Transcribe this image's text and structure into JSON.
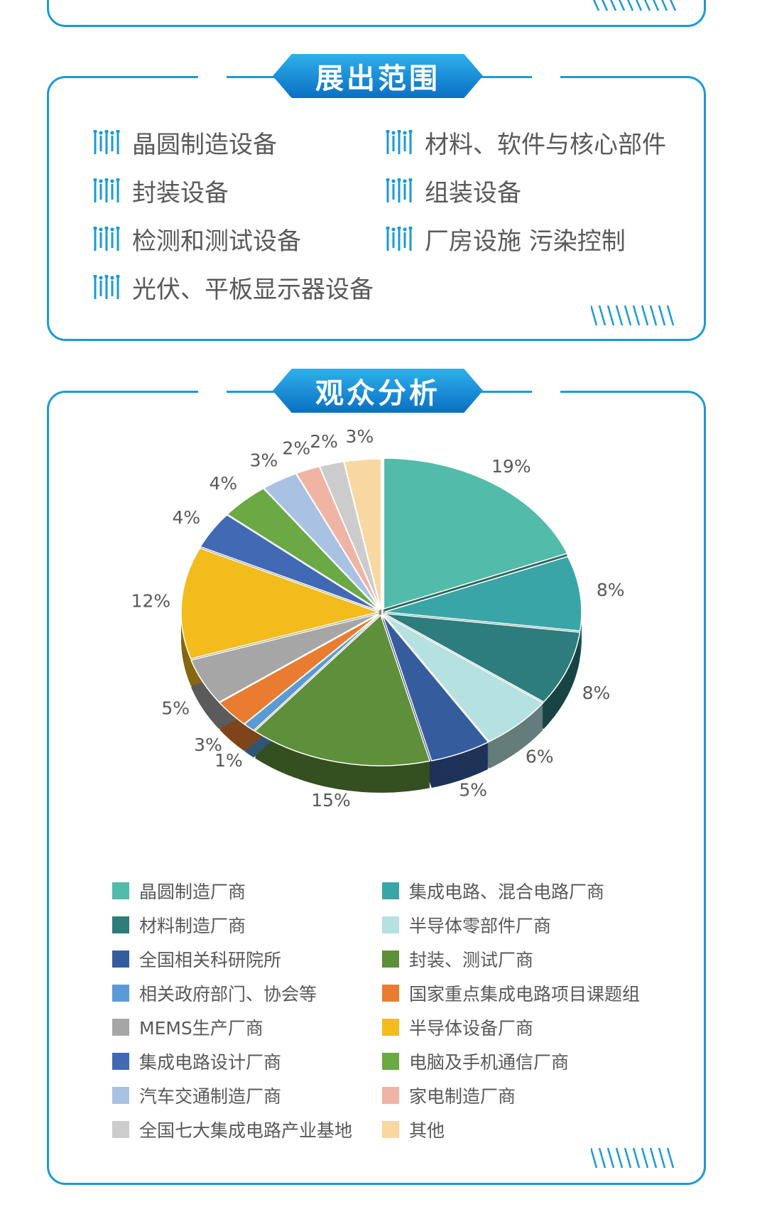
{
  "exhibit_scope": {
    "title": "展出范围",
    "items": [
      "晶圆制造设备",
      "材料、软件与核心部件",
      "封装设备",
      "组装设备",
      "检测和测试设备",
      "厂房设施 污染控制",
      "光伏、平板显示器设备"
    ],
    "icon": "circuit-icon"
  },
  "audience": {
    "title": "观众分析"
  },
  "chart_data": {
    "type": "pie",
    "style": "3d-exploded",
    "legend_position": "bottom",
    "categories": [
      "晶圆制造厂商",
      "集成电路、混合电路厂商",
      "材料制造厂商",
      "半导体零部件厂商",
      "全国相关科研院所",
      "封装、测试厂商",
      "相关政府部门、协会等",
      "国家重点集成电路项目课题组",
      "MEMS生产厂商",
      "半导体设备厂商",
      "集成电路设计厂商",
      "电脑及手机通信厂商",
      "汽车交通制造厂商",
      "家电制造厂商",
      "全国七大集成电路产业基地",
      "其他"
    ],
    "values": [
      19,
      8,
      8,
      6,
      5,
      15,
      1,
      3,
      5,
      12,
      4,
      4,
      3,
      2,
      2,
      3
    ],
    "labels": [
      "19%",
      "8%",
      "8%",
      "6%",
      "5%",
      "15%",
      "1%",
      "3%",
      "5%",
      "12%",
      "4%",
      "4%",
      "3%",
      "2%",
      "2%",
      "3%"
    ],
    "colors": [
      "#52bbaa",
      "#3aa5a6",
      "#2c7d7c",
      "#b5e1e0",
      "#355d9e",
      "#5e8f3a",
      "#5b9bd5",
      "#e97c30",
      "#a6a6a6",
      "#f3bc1d",
      "#4169b4",
      "#6aa944",
      "#a9c2e3",
      "#f0b4a4",
      "#cccccc",
      "#f8d8a0"
    ]
  },
  "colors": {
    "accent": "#1a9ad6"
  }
}
